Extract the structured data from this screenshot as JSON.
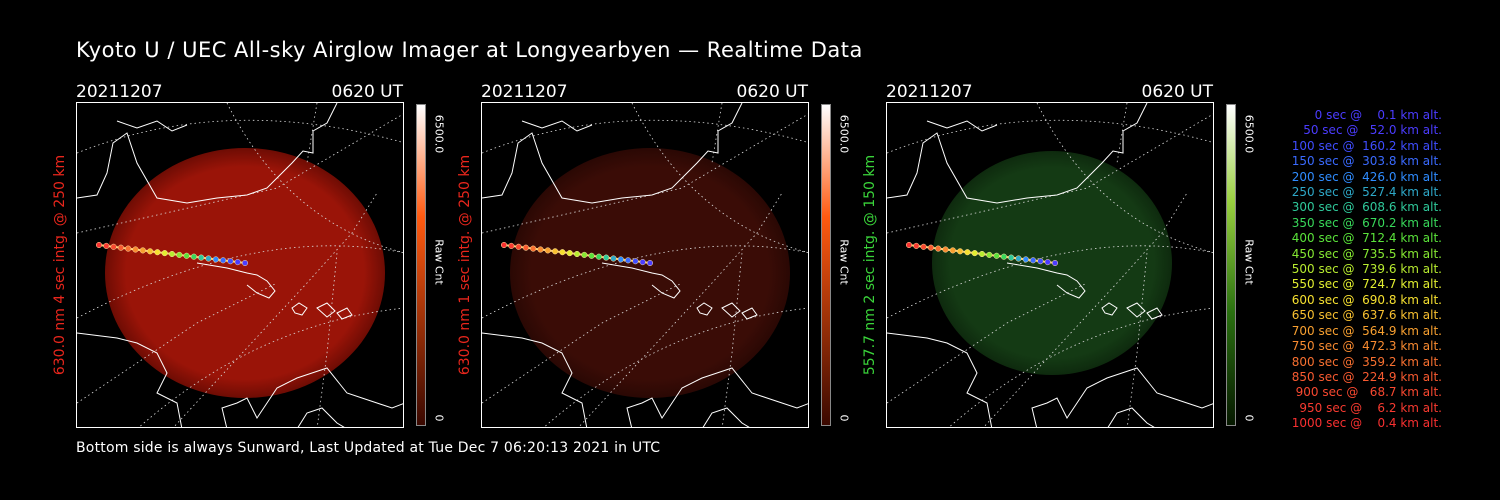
{
  "title": "Kyoto U / UEC All-sky Airglow Imager at Longyearbyen — Realtime Data",
  "footer": "Bottom side is always Sunward, Last Updated at Tue Dec  7 06:20:13 2021 in UTC",
  "panels": [
    {
      "date": "20211207",
      "time": "0620 UT",
      "ylabel": "630.0 nm 4 sec intg. @ 250 km",
      "label_color": "#e8261c",
      "cmax": "6500.0",
      "cmin": "0",
      "unit": "Raw Cnt",
      "bar_color": "#ff5a10",
      "glow": "#9a1408",
      "glow_edge": "#6e0c04",
      "glow_level": 0.75
    },
    {
      "date": "20211207",
      "time": "0620 UT",
      "ylabel": "630.0 nm 1 sec intg. @ 250 km",
      "label_color": "#e8261c",
      "cmax": "6500.0",
      "cmin": "0",
      "unit": "Raw Cnt",
      "bar_color": "#ff5a10",
      "glow": "#3a0c06",
      "glow_edge": "#2a0804",
      "glow_level": 0.3
    },
    {
      "date": "20211207",
      "time": "0620 UT",
      "ylabel": "557.7 nm 2 sec intg. @ 150 km",
      "label_color": "#3ad43a",
      "cmax": "6500.0",
      "cmin": "0",
      "unit": "Raw Cnt",
      "bar_color": "#3aa020",
      "glow": "#143a14",
      "glow_edge": "#0e2a0e",
      "glow_level": 0.3
    }
  ],
  "legend": [
    {
      "text": "   0 sec @    0.1 km alt.",
      "color": "#4b3cff"
    },
    {
      "text": "  50 sec @   52.0 km alt.",
      "color": "#4b3cff"
    },
    {
      "text": " 100 sec @  160.2 km alt.",
      "color": "#3f4dff"
    },
    {
      "text": " 150 sec @  303.8 km alt.",
      "color": "#3a6aff"
    },
    {
      "text": " 200 sec @  426.0 km alt.",
      "color": "#2f8cff"
    },
    {
      "text": " 250 sec @  527.4 km alt.",
      "color": "#2ea8c8"
    },
    {
      "text": " 300 sec @  608.6 km alt.",
      "color": "#2fc89a"
    },
    {
      "text": " 350 sec @  670.2 km alt.",
      "color": "#38d85a"
    },
    {
      "text": " 400 sec @  712.4 km alt.",
      "color": "#5ae23a"
    },
    {
      "text": " 450 sec @  735.5 km alt.",
      "color": "#86e832"
    },
    {
      "text": " 500 sec @  739.6 km alt.",
      "color": "#b8ec30"
    },
    {
      "text": " 550 sec @  724.7 km alt.",
      "color": "#e2ee30"
    },
    {
      "text": " 600 sec @  690.8 km alt.",
      "color": "#f6e030"
    },
    {
      "text": " 650 sec @  637.6 km alt.",
      "color": "#f8c030"
    },
    {
      "text": " 700 sec @  564.9 km alt.",
      "color": "#f8a030"
    },
    {
      "text": " 750 sec @  472.3 km alt.",
      "color": "#f88a30"
    },
    {
      "text": " 800 sec @  359.2 km alt.",
      "color": "#f87030"
    },
    {
      "text": " 850 sec @  224.9 km alt.",
      "color": "#f85a30"
    },
    {
      "text": " 900 sec @   68.7 km alt.",
      "color": "#f84830"
    },
    {
      "text": " 950 sec @    6.2 km alt.",
      "color": "#f83a30"
    },
    {
      "text": "1000 sec @    0.4 km alt.",
      "color": "#f83030"
    }
  ]
}
